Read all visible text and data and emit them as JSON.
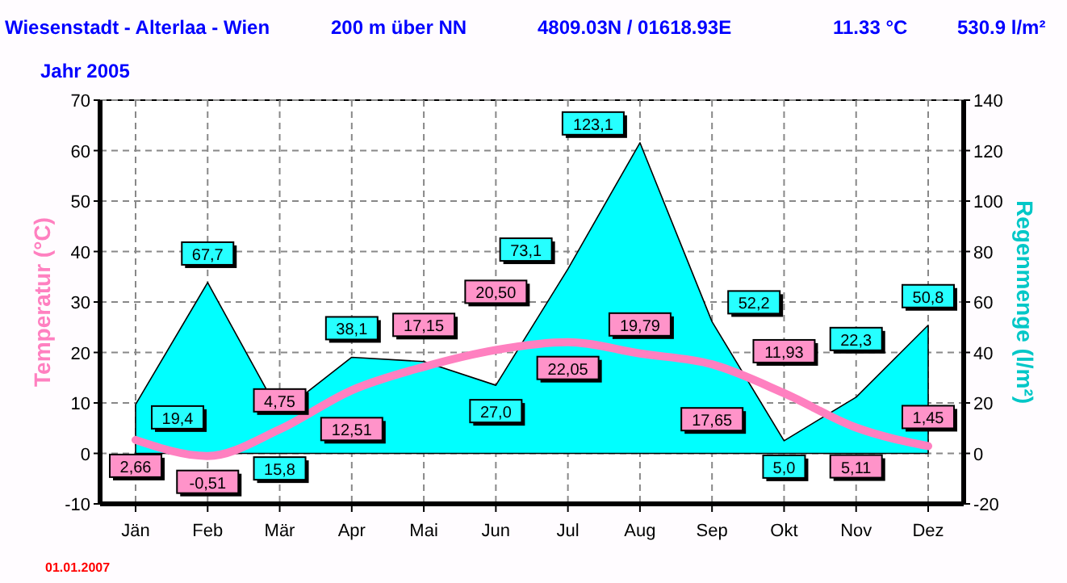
{
  "chart_data": {
    "type": "line",
    "title": "Wiesenstadt - Alterlaa - Wien",
    "subtitle": "Jahr 2005",
    "annotations": [
      "200 m über NN",
      "4809.03N / 01618.93E",
      "11.33 °C",
      "530.9 l/m²",
      "01.01.2007"
    ],
    "ylabel": "Temperatur  (°C)",
    "y2label": "Regenmenge  (l/m²)",
    "categories": [
      "Jän",
      "Feb",
      "Mär",
      "Apr",
      "Mai",
      "Jun",
      "Jul",
      "Aug",
      "Sep",
      "Okt",
      "Nov",
      "Dez"
    ],
    "series": [
      {
        "type": "area",
        "axis": "y2",
        "color": "#00ffff",
        "values": [
          19.4,
          67.7,
          15.8,
          38.1,
          36.4,
          27.0,
          73.1,
          123.1,
          52.2,
          5.0,
          22.3,
          50.8
        ],
        "value_labels": [
          "19,4",
          "67,7",
          "15,8",
          "38,1",
          null,
          "27,0",
          "73,1",
          "123,1",
          "52,2",
          "5,0",
          "22,3",
          "50,8"
        ]
      },
      {
        "color": "#ff80c0",
        "values": [
          2.66,
          -0.51,
          4.75,
          12.51,
          17.15,
          20.5,
          22.05,
          19.79,
          17.65,
          11.93,
          5.11,
          1.45
        ],
        "value_labels": [
          "2,66",
          "-0,51",
          "4,75",
          "12,51",
          "17,15",
          "20,50",
          "22,05",
          "19,79",
          "17,65",
          "11,93",
          "5,11",
          "1,45"
        ]
      }
    ],
    "ylim": [
      -10,
      70
    ],
    "yticks": [
      -10,
      0,
      10,
      20,
      30,
      40,
      50,
      60,
      70
    ],
    "y2lim": [
      -20,
      140
    ],
    "y2ticks": [
      -20,
      0,
      20,
      40,
      60,
      80,
      100,
      120,
      140
    ],
    "grid": true,
    "marker": "none"
  }
}
